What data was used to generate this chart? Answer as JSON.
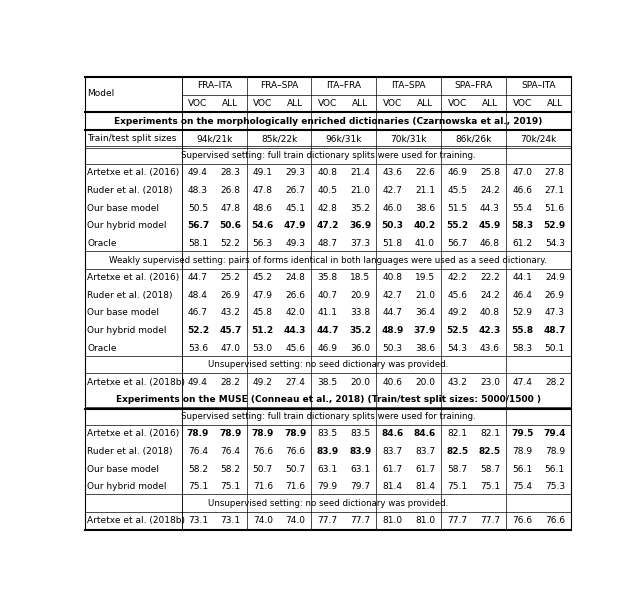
{
  "figsize": [
    6.4,
    6.04
  ],
  "dpi": 100,
  "col_headers_top": [
    "FRA–ITA",
    "FRA–SPA",
    "ITA–FRA",
    "ITA–SPA",
    "SPA–FRA",
    "SPA–ITA"
  ],
  "model_col_label": "Model",
  "sections": [
    {
      "type": "section_header",
      "bold": true,
      "text": "Experiments on the morphologically enriched dictionaries (Czarnowska et al., 2019)"
    },
    {
      "type": "split_sizes",
      "label": "Train/test split sizes",
      "values": [
        "94k/21k",
        "85k/22k",
        "96k/31k",
        "70k/31k",
        "86k/26k",
        "70k/24k"
      ]
    },
    {
      "type": "setting_header",
      "text": "Supervised setting: full train dictionary splits were used for training."
    },
    {
      "type": "data_row",
      "label": "Artetxe et al. (2016)",
      "bold_cells": [],
      "values": [
        49.4,
        28.3,
        49.1,
        29.3,
        40.8,
        21.4,
        43.6,
        22.6,
        46.9,
        25.8,
        47.0,
        27.8
      ]
    },
    {
      "type": "data_row",
      "label": "Ruder et al. (2018)",
      "bold_cells": [],
      "values": [
        48.3,
        26.8,
        47.8,
        26.7,
        40.5,
        21.0,
        42.7,
        21.1,
        45.5,
        24.2,
        46.6,
        27.1
      ]
    },
    {
      "type": "data_row",
      "label": "Our base model",
      "bold_cells": [],
      "values": [
        50.5,
        47.8,
        48.6,
        45.1,
        42.8,
        35.2,
        46.0,
        38.6,
        51.5,
        44.3,
        55.4,
        51.6
      ]
    },
    {
      "type": "data_row",
      "label": "Our hybrid model",
      "bold_cells": [
        0,
        1,
        2,
        3,
        4,
        5,
        6,
        7,
        8,
        9,
        10,
        11
      ],
      "values": [
        56.7,
        50.6,
        54.6,
        47.9,
        47.2,
        36.9,
        50.3,
        40.2,
        55.2,
        45.9,
        58.3,
        52.9
      ]
    },
    {
      "type": "data_row",
      "label": "Oracle",
      "bold_cells": [],
      "values": [
        58.1,
        52.2,
        56.3,
        49.3,
        48.7,
        37.3,
        51.8,
        41.0,
        56.7,
        46.8,
        61.2,
        54.3
      ]
    },
    {
      "type": "setting_header",
      "text": "Weakly supervised setting: pairs of forms identical in both languages were used as a seed dictionary."
    },
    {
      "type": "data_row",
      "label": "Artetxe et al. (2016)",
      "bold_cells": [],
      "values": [
        44.7,
        25.2,
        45.2,
        24.8,
        35.8,
        18.5,
        40.8,
        19.5,
        42.2,
        22.2,
        44.1,
        24.9
      ]
    },
    {
      "type": "data_row",
      "label": "Ruder et al. (2018)",
      "bold_cells": [],
      "values": [
        48.4,
        26.9,
        47.9,
        26.6,
        40.7,
        20.9,
        42.7,
        21.0,
        45.6,
        24.2,
        46.4,
        26.9
      ]
    },
    {
      "type": "data_row",
      "label": "Our base model",
      "bold_cells": [],
      "values": [
        46.7,
        43.2,
        45.8,
        42.0,
        41.1,
        33.8,
        44.7,
        36.4,
        49.2,
        40.8,
        52.9,
        47.3
      ]
    },
    {
      "type": "data_row",
      "label": "Our hybrid model",
      "bold_cells": [
        0,
        1,
        2,
        3,
        4,
        5,
        6,
        7,
        8,
        9,
        10,
        11
      ],
      "values": [
        52.2,
        45.7,
        51.2,
        44.3,
        44.7,
        35.2,
        48.9,
        37.9,
        52.5,
        42.3,
        55.8,
        48.7
      ]
    },
    {
      "type": "data_row",
      "label": "Oracle",
      "bold_cells": [],
      "values": [
        53.6,
        47.0,
        53.0,
        45.6,
        46.9,
        36.0,
        50.3,
        38.6,
        54.3,
        43.6,
        58.3,
        50.1
      ]
    },
    {
      "type": "setting_header",
      "text": "Unsupervised setting: no seed dictionary was provided."
    },
    {
      "type": "data_row",
      "label": "Artetxe et al. (2018b)",
      "bold_cells": [],
      "values": [
        49.4,
        28.2,
        49.2,
        27.4,
        38.5,
        20.0,
        40.6,
        20.0,
        43.2,
        23.0,
        47.4,
        28.2
      ]
    },
    {
      "type": "section_header",
      "bold": true,
      "text": "Experiments on the MUSE (Conneau et al., 2018) (Train/test split sizes: 5000/1500 )"
    },
    {
      "type": "setting_header",
      "text": "Supervised setting: full train dictionary splits were used for training."
    },
    {
      "type": "data_row",
      "label": "Artetxe et al. (2016)",
      "bold_cells": [
        0,
        1,
        2,
        3,
        6,
        7,
        10,
        11
      ],
      "values": [
        78.9,
        78.9,
        78.9,
        78.9,
        83.5,
        83.5,
        84.6,
        84.6,
        82.1,
        82.1,
        79.5,
        79.4
      ]
    },
    {
      "type": "data_row",
      "label": "Ruder et al. (2018)",
      "bold_cells": [
        4,
        5,
        8,
        9
      ],
      "values": [
        76.4,
        76.4,
        76.6,
        76.6,
        83.9,
        83.9,
        83.7,
        83.7,
        82.5,
        82.5,
        78.9,
        78.9
      ]
    },
    {
      "type": "data_row",
      "label": "Our base model",
      "bold_cells": [],
      "values": [
        58.2,
        58.2,
        50.7,
        50.7,
        63.1,
        63.1,
        61.7,
        61.7,
        58.7,
        58.7,
        56.1,
        56.1
      ]
    },
    {
      "type": "data_row",
      "label": "Our hybrid model",
      "bold_cells": [],
      "values": [
        75.1,
        75.1,
        71.6,
        71.6,
        79.9,
        79.7,
        81.4,
        81.4,
        75.1,
        75.1,
        75.4,
        75.3
      ]
    },
    {
      "type": "setting_header",
      "text": "Unsupervised setting: no seed dictionary was provided."
    },
    {
      "type": "data_row",
      "label": "Artetxe et al. (2018b)",
      "bold_cells": [],
      "values": [
        73.1,
        73.1,
        74.0,
        74.0,
        77.7,
        77.7,
        81.0,
        81.0,
        77.7,
        77.7,
        76.6,
        76.6
      ]
    }
  ]
}
